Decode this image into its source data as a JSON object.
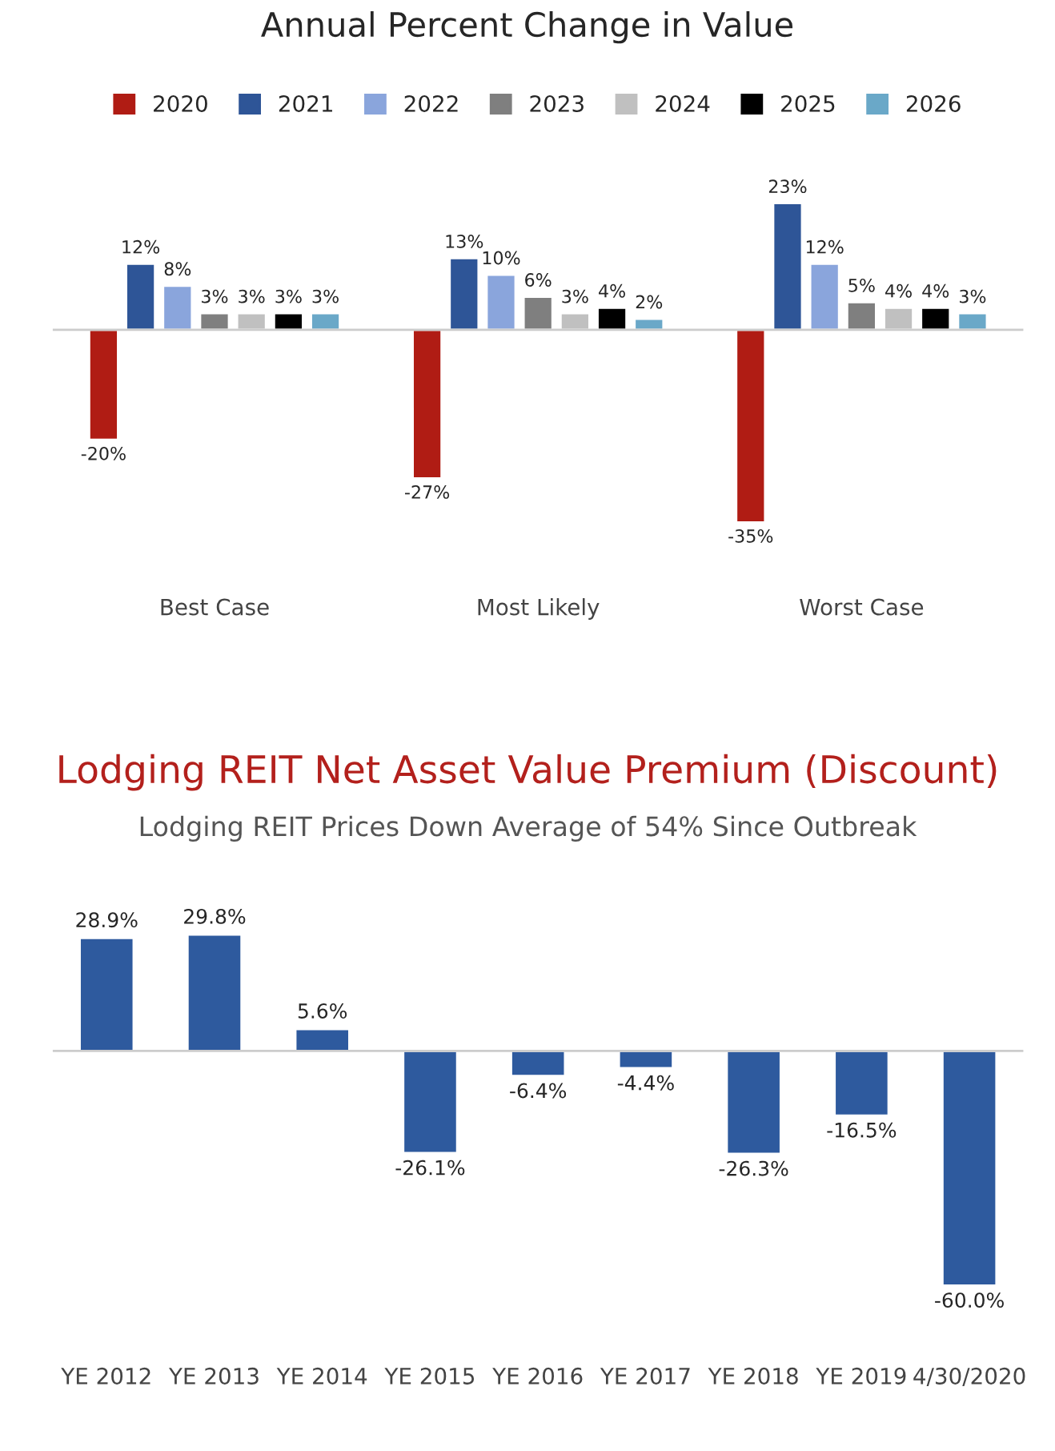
{
  "chart_data": [
    {
      "type": "bar",
      "title": "Annual Percent Change in Value",
      "categories": [
        "Best Case",
        "Most Likely",
        "Worst Case"
      ],
      "tick_labels": "x",
      "legend": "top",
      "series": [
        {
          "name": "2020",
          "color": "#b01c14",
          "values": [
            -20,
            -27,
            -35
          ],
          "value_labels": [
            "-20%",
            "-27%",
            "-35%"
          ]
        },
        {
          "name": "2021",
          "color": "#2e5597",
          "values": [
            12,
            13,
            23
          ],
          "value_labels": [
            "12%",
            "13%",
            "23%"
          ]
        },
        {
          "name": "2022",
          "color": "#8aa5dc",
          "values": [
            8,
            10,
            12
          ],
          "value_labels": [
            "8%",
            "10%",
            "12%"
          ]
        },
        {
          "name": "2023",
          "color": "#7f7f7f",
          "values": [
            3,
            6,
            5
          ],
          "value_labels": [
            "3%",
            "6%",
            "5%"
          ]
        },
        {
          "name": "2024",
          "color": "#c0c0c0",
          "values": [
            3,
            3,
            4
          ],
          "value_labels": [
            "3%",
            "3%",
            "4%"
          ]
        },
        {
          "name": "2025",
          "color": "#000000",
          "values": [
            3,
            4,
            4
          ],
          "value_labels": [
            "3%",
            "4%",
            "4%"
          ]
        },
        {
          "name": "2026",
          "color": "#6aa8c8",
          "values": [
            3,
            2,
            3
          ],
          "value_labels": [
            "3%",
            "2%",
            "3%"
          ]
        }
      ]
    },
    {
      "type": "bar",
      "title": "Lodging REIT Net Asset Value Premium (Discount)",
      "subtitle": "Lodging REIT Prices Down Average of 54% Since Outbreak",
      "categories": [
        "YE 2012",
        "YE 2013",
        "YE 2014",
        "YE 2015",
        "YE 2016",
        "YE 2017",
        "YE 2018",
        "YE 2019",
        "4/30/2020"
      ],
      "tick_labels": "x",
      "series": [
        {
          "color": "#2e5a9e",
          "values": [
            28.9,
            29.8,
            5.6,
            -26.1,
            -6.4,
            -4.4,
            -26.3,
            -16.5,
            -60.0
          ],
          "value_labels": [
            "28.9%",
            "29.8%",
            "5.6%",
            "-26.1%",
            "-6.4%",
            "-4.4%",
            "-26.3%",
            "-16.5%",
            "-60.0%"
          ]
        }
      ]
    }
  ]
}
